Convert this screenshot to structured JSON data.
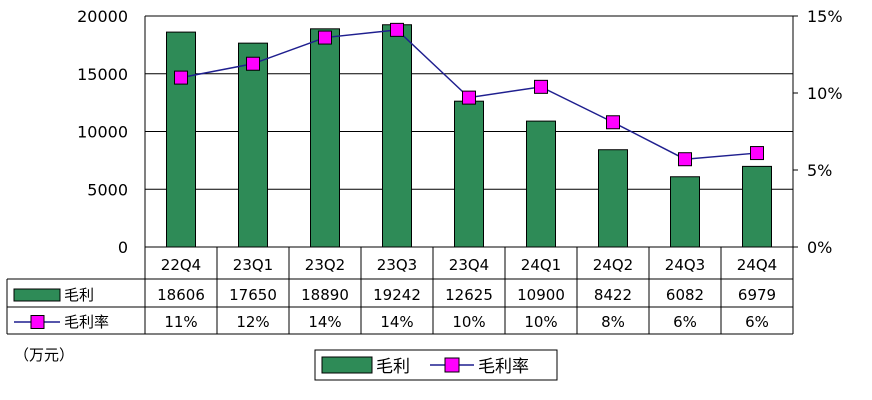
{
  "chart_data": {
    "type": "bar",
    "categories": [
      "22Q4",
      "23Q1",
      "23Q2",
      "23Q3",
      "23Q4",
      "24Q1",
      "24Q2",
      "24Q3",
      "24Q4"
    ],
    "series": [
      {
        "name": "毛利",
        "type": "bar",
        "axis": "left",
        "color": "#2e8b57",
        "values": [
          18606,
          17650,
          18890,
          19242,
          12625,
          10900,
          8422,
          6082,
          6979
        ]
      },
      {
        "name": "毛利率",
        "type": "line",
        "axis": "right",
        "color": "#ff00ff",
        "line_color": "#1f1f8f",
        "values": [
          0.11,
          0.12,
          0.14,
          0.14,
          0.1,
          0.1,
          0.08,
          0.06,
          0.06
        ],
        "plotted_values": [
          0.11,
          0.119,
          0.136,
          0.141,
          0.097,
          0.104,
          0.081,
          0.057,
          0.061
        ],
        "table_labels": [
          "11%",
          "12%",
          "14%",
          "14%",
          "10%",
          "10%",
          "8%",
          "6%",
          "6%"
        ]
      }
    ],
    "table_values": {
      "毛利": [
        "18606",
        "17650",
        "18890",
        "19242",
        "12625",
        "10900",
        "8422",
        "6082",
        "6979"
      ]
    },
    "left_axis": {
      "ylim": [
        0,
        20000
      ],
      "ticks": [
        "0",
        "5000",
        "10000",
        "15000",
        "20000"
      ]
    },
    "right_axis": {
      "ylim": [
        0,
        0.15
      ],
      "ticks": [
        "0%",
        "5%",
        "10%",
        "15%"
      ]
    },
    "unit_label": "（万元）",
    "grid": true,
    "legend_position": "bottom-center",
    "legend": [
      "毛利",
      "毛利率"
    ]
  }
}
